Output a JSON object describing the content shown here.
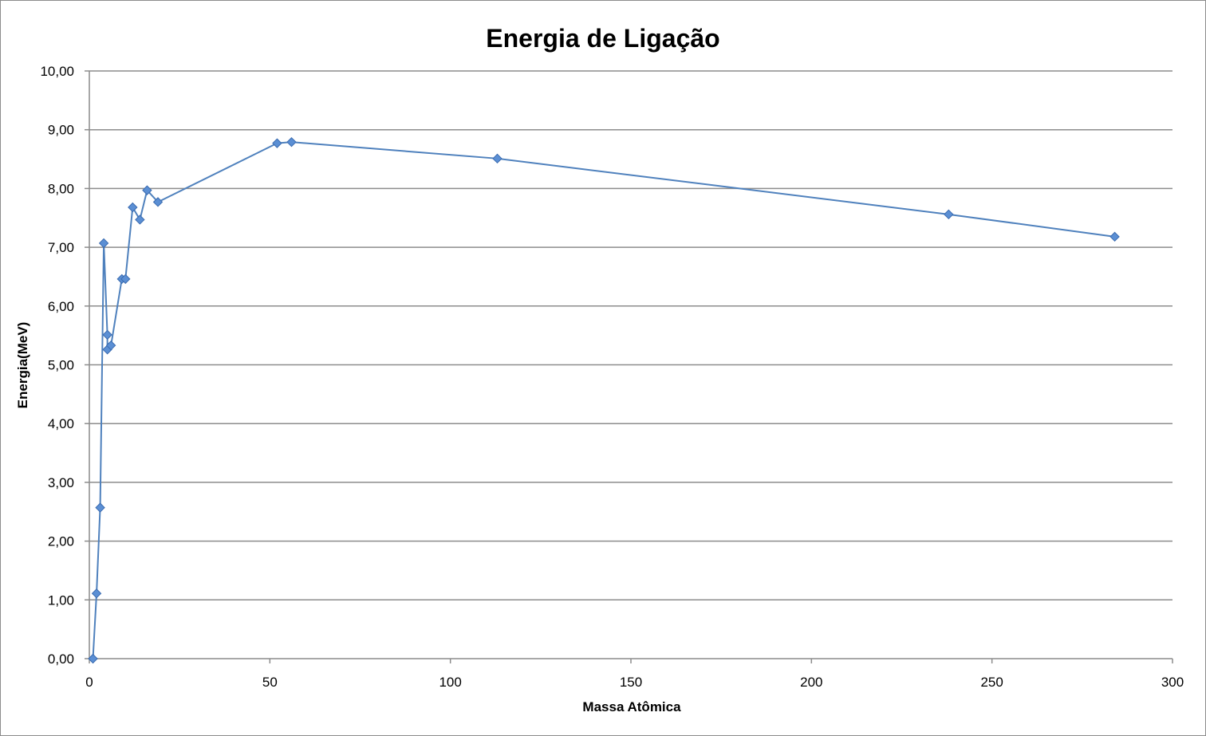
{
  "chart_data": {
    "type": "scatter",
    "title": "Energia de Ligação",
    "xlabel": "Massa Atômica",
    "ylabel": "Energia(MeV)",
    "xlim": [
      0,
      300
    ],
    "ylim": [
      0,
      10
    ],
    "x_ticks": [
      "0",
      "50",
      "100",
      "150",
      "200",
      "250",
      "300"
    ],
    "x_tick_values": [
      0,
      50,
      100,
      150,
      200,
      250,
      300
    ],
    "y_ticks": [
      "0,00",
      "1,00",
      "2,00",
      "3,00",
      "4,00",
      "5,00",
      "6,00",
      "7,00",
      "8,00",
      "9,00",
      "10,00"
    ],
    "y_tick_values": [
      0,
      1,
      2,
      3,
      4,
      5,
      6,
      7,
      8,
      9,
      10
    ],
    "grid": "horizontal",
    "legend": "none",
    "marker": "diamond",
    "line_color": "#4f81bd",
    "series": [
      {
        "x": [
          1,
          2,
          3,
          4,
          5,
          5,
          6,
          9,
          10,
          12,
          14,
          16,
          19,
          52,
          56,
          113,
          238,
          284
        ],
        "y": [
          0.0,
          1.11,
          2.57,
          7.07,
          5.51,
          5.26,
          5.33,
          6.46,
          6.46,
          7.68,
          7.47,
          7.97,
          7.77,
          8.77,
          8.79,
          8.51,
          7.56,
          7.18
        ]
      }
    ]
  }
}
